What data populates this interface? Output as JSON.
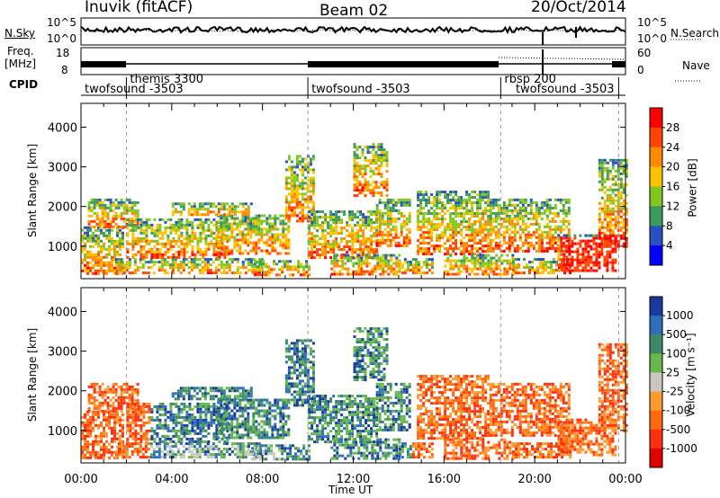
{
  "header": {
    "station": "Inuvik (fitACF)",
    "beam": "Beam 02",
    "date": "20/Oct/2014"
  },
  "side_labels": {
    "nsky": "N.Sky",
    "nsky_ticks": [
      "10^5",
      "10^0"
    ],
    "nsearch": "N.Search",
    "freq_line1": "Freq.",
    "freq_line2": "[MHz]",
    "freq_ticks": [
      "18",
      "8"
    ],
    "nave": "Nave",
    "nave_ticks": [
      "60",
      "0"
    ],
    "cpid": "CPID"
  },
  "cpid_programs": [
    {
      "label": "twofsound -3503",
      "start_hour": 0.0
    },
    {
      "label": "themis 3300",
      "start_hour": 2.0
    },
    {
      "label": "twofsound -3503",
      "start_hour": 10.0
    },
    {
      "label": "rbsp 200",
      "start_hour": 18.5
    },
    {
      "label": "twofsound -3503",
      "start_hour": 19.0
    }
  ],
  "cpid_dividers_hours": [
    2.0,
    10.0,
    18.5,
    23.7
  ],
  "chart_data": [
    {
      "type": "heatmap",
      "panel": "power",
      "ylabel": "Slant Range [km]",
      "ylim": [
        180,
        4600
      ],
      "xlim": [
        0,
        24
      ],
      "yticks": [
        "1000",
        "2000",
        "3000",
        "4000"
      ],
      "colorbar_label": "Power [dB]",
      "colorbar_ticks": [
        "28",
        "24",
        "20",
        "16",
        "12",
        "8",
        "4"
      ],
      "colorbar_colors": [
        "#ff0000",
        "#ff4500",
        "#ff8c00",
        "#ffc200",
        "#80c820",
        "#3c9a5a",
        "#2850c0",
        "#0000ff"
      ]
    },
    {
      "type": "heatmap",
      "panel": "velocity",
      "ylabel": "Slant Range [km]",
      "ylim": [
        180,
        4600
      ],
      "xlim": [
        0,
        24
      ],
      "yticks": [
        "1000",
        "2000",
        "3000",
        "4000"
      ],
      "xticks": [
        "00:00",
        "04:00",
        "08:00",
        "12:00",
        "16:00",
        "20:00",
        "00:00"
      ],
      "xlabel": "Time UT",
      "colorbar_label": "Velocity [m s⁻¹]",
      "colorbar_ticks": [
        "1000",
        "500",
        "100",
        "25",
        "-25",
        "-100",
        "-500",
        "-1000"
      ],
      "colorbar_colors": [
        "#1a3aa0",
        "#2d6fb8",
        "#3d8a6a",
        "#66b84a",
        "#c8c8c0",
        "#ff9a30",
        "#ff6a10",
        "#ff3010",
        "#e00000"
      ]
    }
  ]
}
